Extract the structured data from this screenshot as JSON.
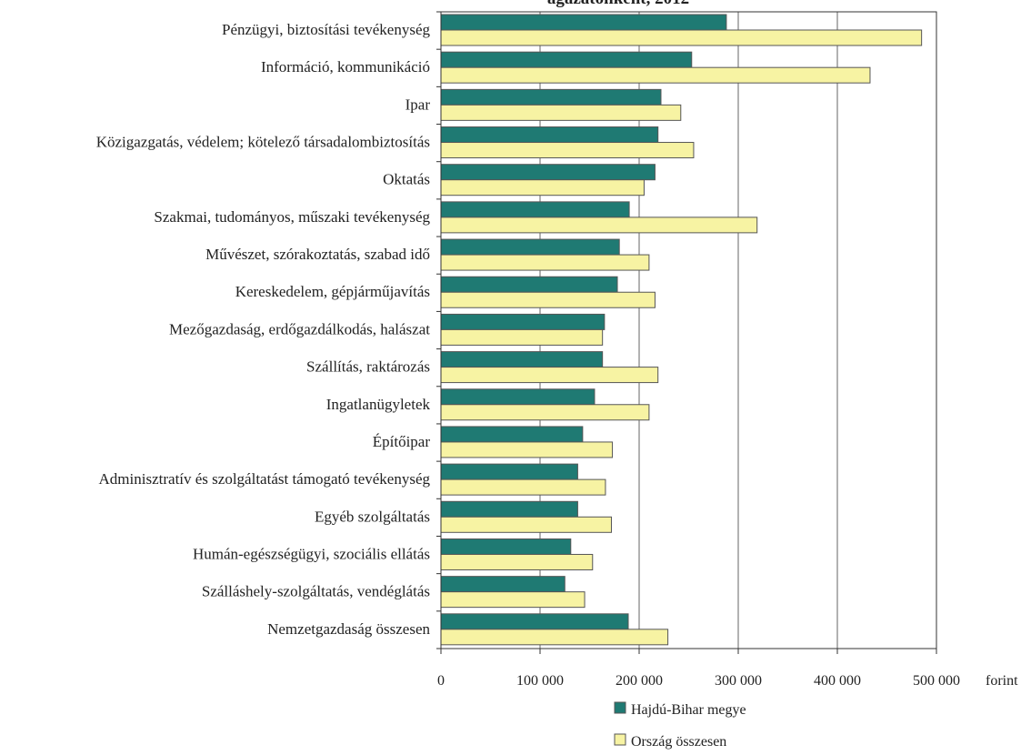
{
  "chart_data": {
    "type": "bar",
    "orientation": "horizontal",
    "title": "",
    "xlabel": "",
    "x_unit": "forint",
    "xlim": [
      0,
      500000
    ],
    "x_ticks": [
      0,
      100000,
      200000,
      300000,
      400000,
      500000
    ],
    "x_tick_labels": [
      "0",
      "100 000",
      "200 000",
      "300 000",
      "400 000",
      "500 000"
    ],
    "grid": "vertical",
    "legend_position": "bottom",
    "categories": [
      "Pénzügyi, biztosítási tevékenység",
      "Információ, kommunikáció",
      "Ipar",
      "Közigazgatás, védelem; kötelező társadalombiztosítás",
      "Oktatás",
      "Szakmai, tudományos, műszaki tevékenység",
      "Művészet, szórakoztatás, szabad idő",
      "Kereskedelem, gépjárműjavítás",
      "Mezőgazdaság, erdőgazdálkodás, halászat",
      "Szállítás, raktározás",
      "Ingatlanügyletek",
      "Építőipar",
      "Adminisztratív és szolgáltatást támogató tevékenység",
      "Egyéb szolgáltatás",
      "Humán-egészségügyi, szociális ellátás",
      "Szálláshely-szolgáltatás, vendéglátás",
      "Nemzetgazdaság összesen"
    ],
    "series": [
      {
        "name": "Hajdú-Bihar megye",
        "color": "#1f7a73",
        "values": [
          288000,
          253000,
          222000,
          219000,
          216000,
          190000,
          180000,
          178000,
          165000,
          163000,
          155000,
          143000,
          138000,
          138000,
          131000,
          125000,
          189000
        ]
      },
      {
        "name": "Ország összesen",
        "color": "#f7f3a3",
        "values": [
          485000,
          433000,
          242000,
          255000,
          205000,
          319000,
          210000,
          216000,
          163000,
          219000,
          210000,
          173000,
          166000,
          172000,
          153000,
          145000,
          229000
        ]
      }
    ]
  },
  "title_partial": "ágazatonként, 2012",
  "legend": {
    "items": [
      "Hajdú-Bihar megye",
      "Ország összesen"
    ]
  }
}
